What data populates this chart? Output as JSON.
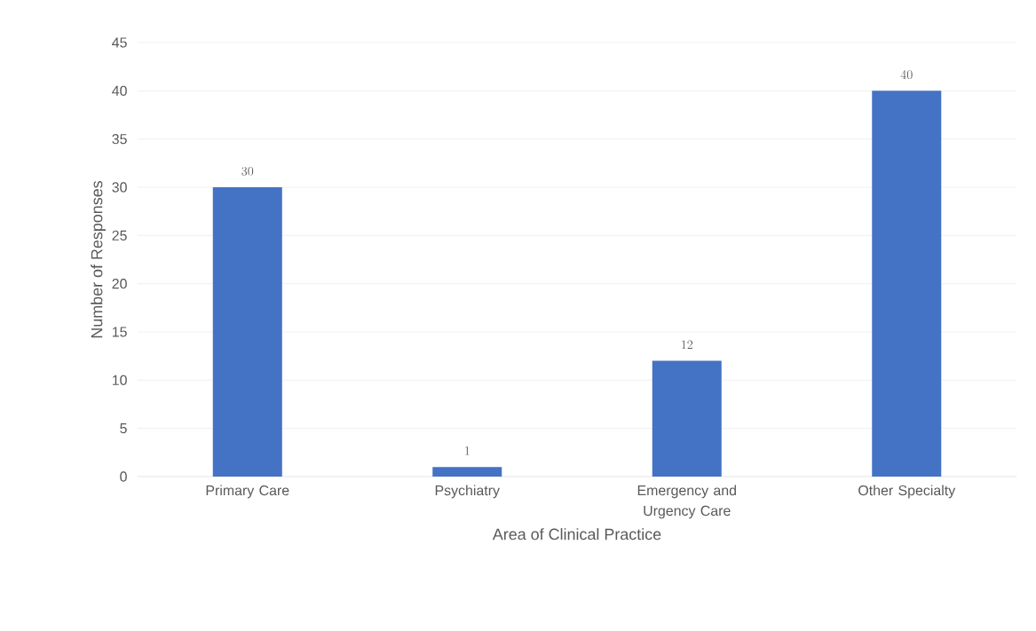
{
  "chart_data": {
    "type": "bar",
    "xlabel": "Area of Clinical Practice",
    "ylabel": "Number  of Responses",
    "categories": [
      "Primary Care",
      "Psychiatry",
      "Emergency and Urgency Care",
      "Other Specialty"
    ],
    "values": [
      30,
      1,
      12,
      40
    ],
    "color": "#4472c4",
    "ylim": [
      0,
      45
    ],
    "yticks": [
      0,
      5,
      10,
      15,
      20,
      25,
      30,
      35,
      40,
      45
    ],
    "grid": "y",
    "data_labels": true
  }
}
